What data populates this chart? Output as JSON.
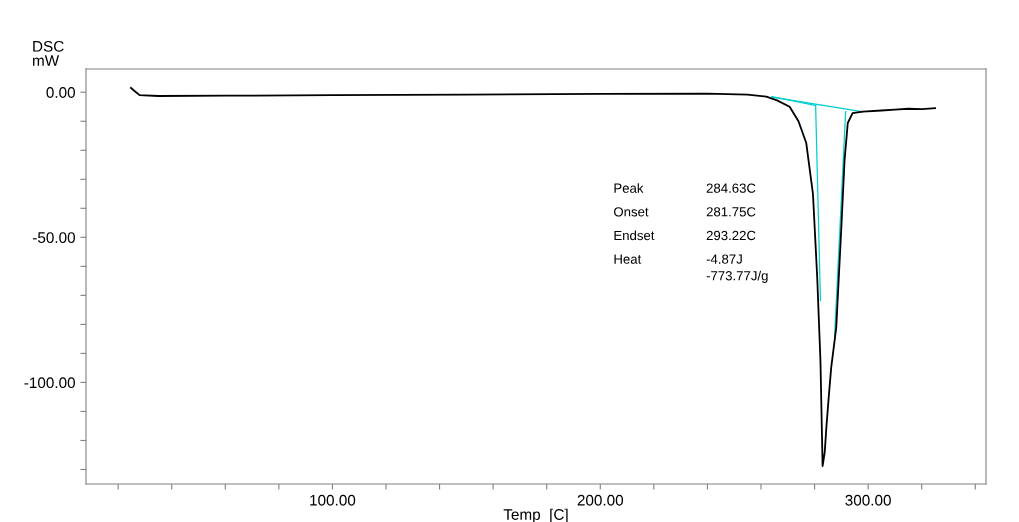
{
  "chart_data": {
    "type": "line",
    "xlabel": "Temp  [C]",
    "ylabel": "DSC\nmW",
    "xlim": [
      8,
      344
    ],
    "ylim": [
      -135,
      8
    ],
    "xticks": [
      {
        "value": 20,
        "label": null
      },
      {
        "value": 40,
        "label": null
      },
      {
        "value": 60,
        "label": null
      },
      {
        "value": 80,
        "label": null
      },
      {
        "value": 100,
        "label": "100.00"
      },
      {
        "value": 120,
        "label": null
      },
      {
        "value": 140,
        "label": null
      },
      {
        "value": 160,
        "label": null
      },
      {
        "value": 180,
        "label": null
      },
      {
        "value": 200,
        "label": "200.00"
      },
      {
        "value": 220,
        "label": null
      },
      {
        "value": 240,
        "label": null
      },
      {
        "value": 260,
        "label": null
      },
      {
        "value": 280,
        "label": null
      },
      {
        "value": 300,
        "label": "300.00"
      },
      {
        "value": 320,
        "label": null
      },
      {
        "value": 340,
        "label": null
      }
    ],
    "yticks": [
      {
        "value": 0,
        "label": "0.00"
      },
      {
        "value": -10,
        "label": null
      },
      {
        "value": -20,
        "label": null
      },
      {
        "value": -30,
        "label": null
      },
      {
        "value": -40,
        "label": null
      },
      {
        "value": -50,
        "label": "-50.00"
      },
      {
        "value": -60,
        "label": null
      },
      {
        "value": -70,
        "label": null
      },
      {
        "value": -80,
        "label": null
      },
      {
        "value": -90,
        "label": null
      },
      {
        "value": -100,
        "label": "-100.00"
      },
      {
        "value": -110,
        "label": null
      },
      {
        "value": -120,
        "label": null
      },
      {
        "value": -130,
        "label": null
      }
    ],
    "grid": false,
    "legend": false,
    "marker": "none",
    "line_style": "solid",
    "series": [
      {
        "color": "#00ced1",
        "x": [
          264.3,
          298
        ],
        "values": [
          -1.7,
          -6.7
        ]
      },
      {
        "color": "#00ced1",
        "x": [
          264,
          280.4
        ],
        "values": [
          -1.5,
          -4.6
        ]
      },
      {
        "color": "#00ced1",
        "x": [
          280.4,
          282.2
        ],
        "values": [
          -4.6,
          -71.8
        ]
      },
      {
        "color": "#00ced1",
        "x": [
          291.6,
          287.5
        ],
        "values": [
          -6.7,
          -83.8
        ]
      },
      {
        "color": "#000000",
        "x": [
          24.8,
          26,
          28,
          35,
          60,
          100,
          150,
          200,
          240,
          255,
          262,
          266,
          270.7,
          274,
          276.9,
          279.4,
          281,
          282.2,
          283,
          283.8,
          284.4,
          285.3,
          286.2,
          288.1,
          290,
          291.2,
          292.4,
          294.2,
          298,
          305,
          310,
          315,
          320,
          325
        ],
        "values": [
          1.5,
          0.5,
          -1.0,
          -1.3,
          -1.2,
          -1.0,
          -0.8,
          -0.6,
          -0.5,
          -0.8,
          -1.5,
          -2.8,
          -5,
          -10,
          -17.5,
          -35,
          -64,
          -92.5,
          -128.8,
          -124,
          -115.6,
          -105,
          -95,
          -81,
          -46.5,
          -23.4,
          -10.6,
          -7.2,
          -6.7,
          -6.3,
          -6.0,
          -5.7,
          -5.8,
          -5.5
        ]
      }
    ],
    "annotations": [
      "Peak",
      "284.63C",
      "Onset",
      "281.75C",
      "Endset",
      "293.22C",
      "Heat",
      "-4.87J\n-773.77J/g"
    ]
  }
}
